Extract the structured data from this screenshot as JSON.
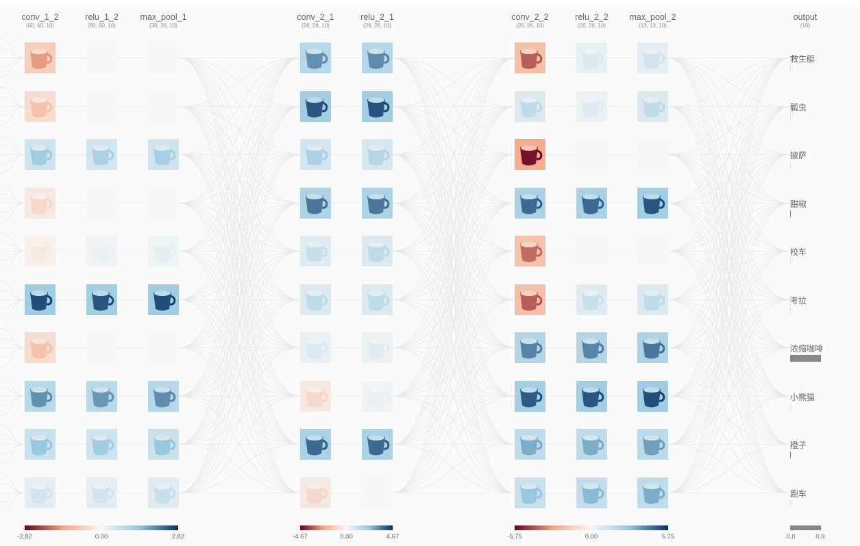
{
  "layers": [
    {
      "name": "conv_1_2",
      "shape": "(60, 60, 10)",
      "values": [
        -0.55,
        -0.35,
        0.45,
        -0.2,
        -0.1,
        0.95,
        -0.35,
        0.7,
        0.5,
        0.2
      ]
    },
    {
      "name": "relu_1_2",
      "shape": "(60, 60, 10)",
      "values": [
        0.0,
        0.0,
        0.4,
        0.0,
        0.08,
        0.92,
        0.0,
        0.68,
        0.45,
        0.2
      ]
    },
    {
      "name": "max_pool_1",
      "shape": "(30, 30, 10)",
      "values": [
        0.0,
        0.0,
        0.42,
        0.0,
        0.1,
        0.95,
        0.0,
        0.72,
        0.5,
        0.25
      ]
    },
    {
      "name": "conv_2_1",
      "shape": "(28, 28, 10)",
      "values": [
        0.7,
        0.92,
        0.4,
        0.8,
        0.25,
        0.3,
        0.15,
        -0.2,
        0.85,
        -0.2
      ]
    },
    {
      "name": "relu_2_1",
      "shape": "(28, 28, 10)",
      "values": [
        0.72,
        0.93,
        0.35,
        0.8,
        0.3,
        0.3,
        0.12,
        0.08,
        0.85,
        0.0
      ]
    },
    {
      "name": "conv_2_2",
      "shape": "(26, 26, 10)",
      "values": [
        -0.75,
        0.3,
        -1.0,
        0.85,
        -0.7,
        -0.75,
        0.75,
        0.9,
        0.6,
        0.5
      ]
    },
    {
      "name": "relu_2_2",
      "shape": "(26, 26, 10)",
      "values": [
        0.15,
        0.12,
        0.0,
        0.85,
        0.0,
        0.25,
        0.75,
        0.92,
        0.6,
        0.55
      ]
    },
    {
      "name": "max_pool_2",
      "shape": "(13, 13, 10)",
      "values": [
        0.2,
        0.3,
        0.0,
        0.92,
        0.0,
        0.3,
        0.8,
        0.95,
        0.65,
        0.6
      ]
    }
  ],
  "output": {
    "name": "output",
    "shape": "(10)",
    "classes": [
      {
        "label": "救生艇",
        "prob": 0.0
      },
      {
        "label": "瓢虫",
        "prob": 0.0
      },
      {
        "label": "披萨",
        "prob": 0.0
      },
      {
        "label": "甜椒",
        "prob": 0.01
      },
      {
        "label": "校车",
        "prob": 0.0
      },
      {
        "label": "考拉",
        "prob": 0.0
      },
      {
        "label": "浓缩咖啡",
        "prob": 0.9
      },
      {
        "label": "小熊猫",
        "prob": 0.0
      },
      {
        "label": "橙子",
        "prob": 0.02
      },
      {
        "label": "跑车",
        "prob": 0.0
      }
    ]
  },
  "colorbars": [
    {
      "min": "-2.82",
      "mid": "0.00",
      "max": "2.82"
    },
    {
      "min": "-4.67",
      "mid": "0.00",
      "max": "4.67"
    },
    {
      "min": "-5.75",
      "mid": "0.00",
      "max": "5.75"
    }
  ],
  "output_scale": {
    "min": "0.0",
    "max": "0.9"
  },
  "colors": {
    "negative_dark": "#67001f",
    "negative_mid": "#f4a582",
    "neutral": "#f7f7f7",
    "positive_mid": "#92c5de",
    "positive_dark": "#053061",
    "wire": "#e8e8e8",
    "bar": "#888888"
  }
}
